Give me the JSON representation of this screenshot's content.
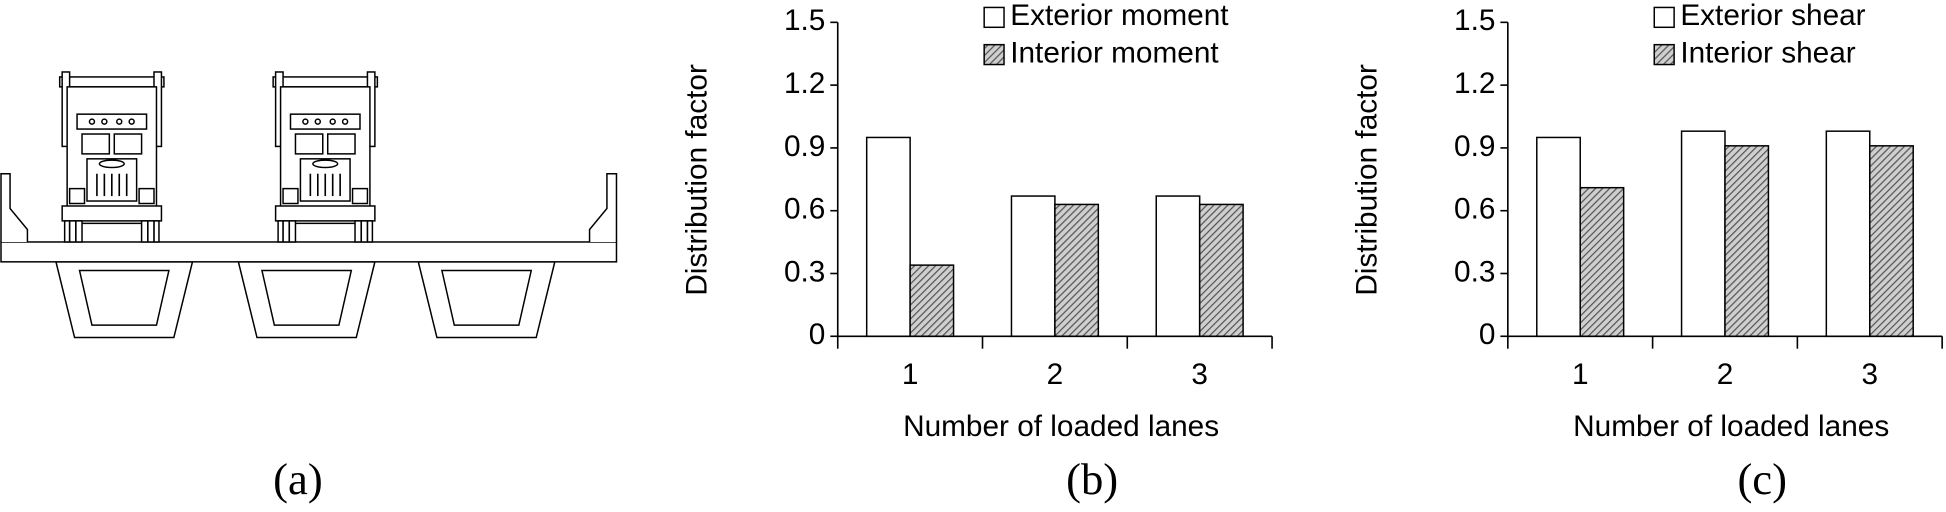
{
  "captions": [
    "(a)",
    "(b)",
    "(c)"
  ],
  "chart_data": [
    {
      "type": "bar",
      "categories": [
        "1",
        "2",
        "3"
      ],
      "series": [
        {
          "name": "Exterior moment",
          "color": "#ffffff",
          "hatch": false,
          "values": [
            0.95,
            0.67,
            0.67
          ]
        },
        {
          "name": "Interior moment",
          "color": "#8c8c8c",
          "hatch": true,
          "values": [
            0.34,
            0.63,
            0.63
          ]
        }
      ],
      "ylim": [
        0,
        1.5
      ],
      "yticks": [
        0,
        0.3,
        0.6,
        0.9,
        1.2,
        1.5
      ],
      "xlabel": "Number of loaded lanes",
      "ylabel": "Distribution factor",
      "legend": "upper right",
      "grid": false
    },
    {
      "type": "bar",
      "categories": [
        "1",
        "2",
        "3"
      ],
      "series": [
        {
          "name": "Exterior shear",
          "color": "#ffffff",
          "hatch": false,
          "values": [
            0.95,
            0.98,
            0.98
          ]
        },
        {
          "name": "Interior shear",
          "color": "#8c8c8c",
          "hatch": true,
          "values": [
            0.71,
            0.91,
            0.91
          ]
        }
      ],
      "ylim": [
        0,
        1.5
      ],
      "yticks": [
        0,
        0.3,
        0.6,
        0.9,
        1.2,
        1.5
      ],
      "xlabel": "Number of loaded lanes",
      "ylabel": "Distribution factor",
      "legend": "upper right",
      "grid": false
    }
  ]
}
